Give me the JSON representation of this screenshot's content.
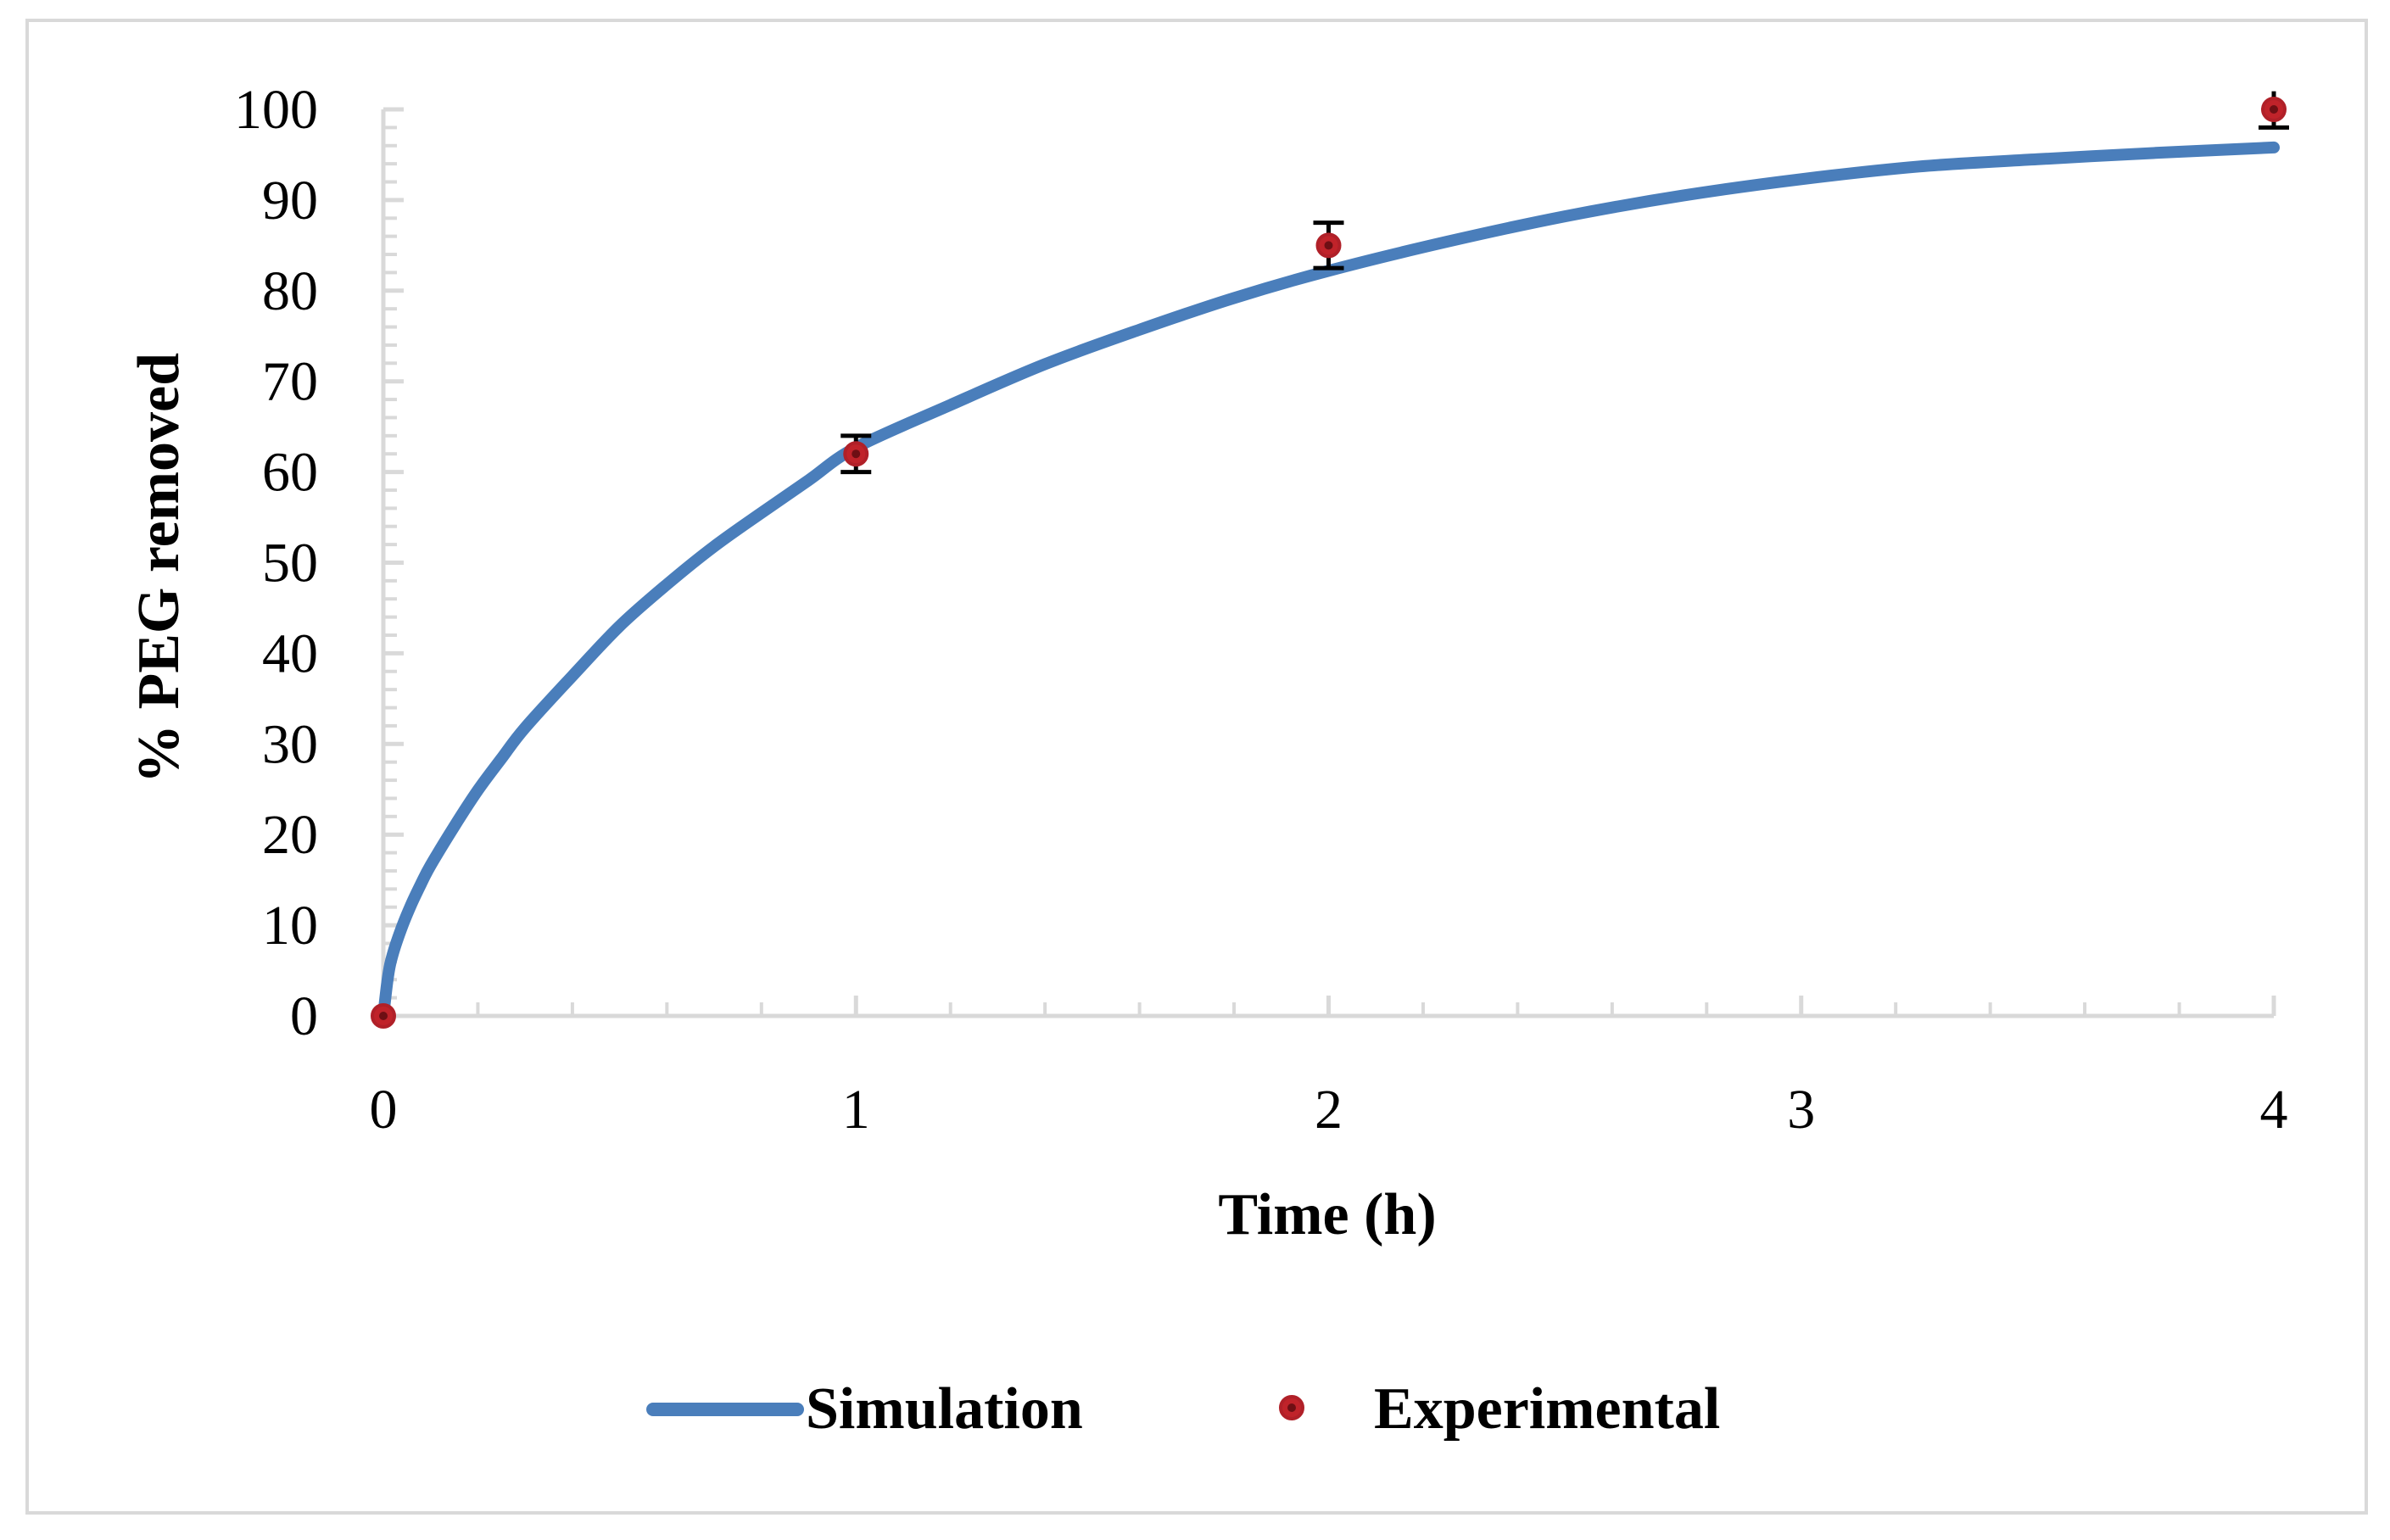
{
  "chart_data": {
    "type": "line",
    "title": "",
    "xlabel": "Time (h)",
    "ylabel": "% PEG removed",
    "xlim": [
      0,
      4
    ],
    "ylim": [
      0,
      100
    ],
    "x_ticks": [
      0,
      1,
      2,
      3,
      4
    ],
    "x_tick_labels": [
      "0",
      "1",
      "2",
      "3",
      "4"
    ],
    "x_minor_step": 0.2,
    "y_ticks": [
      0,
      10,
      20,
      30,
      40,
      50,
      60,
      70,
      80,
      90,
      100
    ],
    "y_tick_labels": [
      "0",
      "10",
      "20",
      "30",
      "40",
      "50",
      "60",
      "70",
      "80",
      "90",
      "100"
    ],
    "y_minor_step": 2,
    "grid": false,
    "legend_position": "bottom-center",
    "series": [
      {
        "name": "Simulation",
        "kind": "line",
        "color": "#4a7ebb",
        "x": [
          0,
          0.01,
          0.02,
          0.04,
          0.06,
          0.08,
          0.1,
          0.15,
          0.2,
          0.25,
          0.3,
          0.4,
          0.5,
          0.6,
          0.7,
          0.8,
          0.9,
          1.0,
          1.2,
          1.4,
          1.6,
          1.8,
          2.0,
          2.25,
          2.5,
          2.75,
          3.0,
          3.25,
          3.5,
          3.75,
          4.0
        ],
        "y": [
          0,
          4.4,
          6.8,
          9.9,
          12.4,
          14.6,
          16.6,
          20.9,
          24.9,
          28.4,
          31.8,
          37.5,
          43.0,
          47.6,
          51.8,
          55.5,
          59.1,
          62.7,
          67.4,
          71.9,
          75.7,
          79.2,
          82.2,
          85.4,
          88.2,
          90.5,
          92.3,
          93.7,
          94.5,
          95.2,
          95.8
        ]
      },
      {
        "name": "Experimental",
        "kind": "scatter",
        "color": "#c0232a",
        "x": [
          0,
          1,
          2,
          4
        ],
        "y": [
          0,
          62,
          85,
          100
        ],
        "error": [
          0,
          2,
          2.5,
          2
        ]
      }
    ]
  }
}
